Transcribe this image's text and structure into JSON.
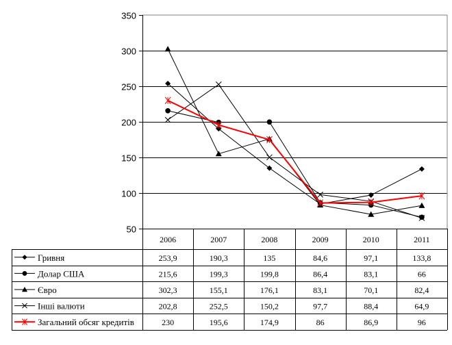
{
  "chart_data": {
    "type": "line",
    "title": "",
    "xlabel": "",
    "ylabel": "",
    "ylim": [
      50,
      350
    ],
    "yticks": [
      "50",
      "100",
      "150",
      "200",
      "250",
      "300",
      "350"
    ],
    "grid": true,
    "legend": "data-table-below",
    "categories": [
      "2006",
      "2007",
      "2008",
      "2009",
      "2010",
      "2011"
    ],
    "series": [
      {
        "name": "Гривня",
        "marker": "diamond",
        "color": "#000000",
        "values": [
          253.9,
          190.3,
          135,
          84.6,
          97.1,
          133.8
        ],
        "labels": [
          "253,9",
          "190,3",
          "135",
          "84,6",
          "97,1",
          "133,8"
        ]
      },
      {
        "name": "Долар США",
        "marker": "circle",
        "color": "#000000",
        "values": [
          215.6,
          199.3,
          199.8,
          86.4,
          83.1,
          66
        ],
        "labels": [
          "215,6",
          "199,3",
          "199,8",
          "86,4",
          "83,1",
          "66"
        ]
      },
      {
        "name": "Євро",
        "marker": "triangle",
        "color": "#000000",
        "values": [
          302.3,
          155.1,
          176.1,
          83.1,
          70.1,
          82.4
        ],
        "labels": [
          "302,3",
          "155,1",
          "176,1",
          "83,1",
          "70,1",
          "82,4"
        ]
      },
      {
        "name": "Інші валюти",
        "marker": "x",
        "color": "#000000",
        "values": [
          202.8,
          252.5,
          150.2,
          97.7,
          88.4,
          64.9
        ],
        "labels": [
          "202,8",
          "252,5",
          "150,2",
          "97,7",
          "88,4",
          "64,9"
        ]
      },
      {
        "name": "Загальний обсяг кредитів",
        "marker": "asterisk",
        "color": "#ff0000",
        "values": [
          230,
          195.6,
          174.9,
          86,
          86.9,
          96
        ],
        "labels": [
          "230",
          "195,6",
          "174,9",
          "86",
          "86,9",
          "96"
        ]
      }
    ]
  }
}
